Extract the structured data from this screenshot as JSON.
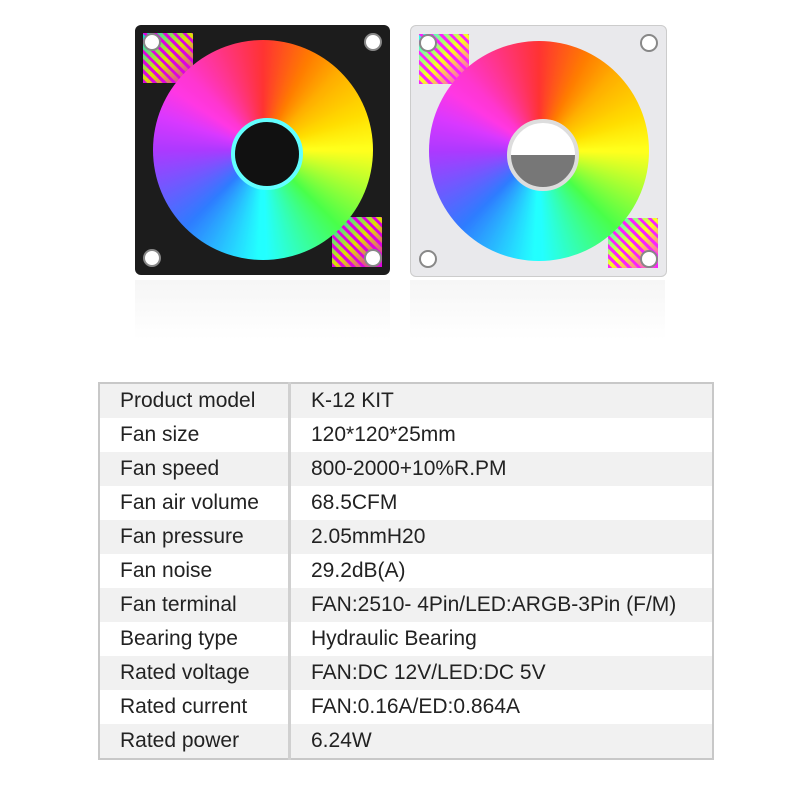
{
  "products": [
    {
      "name": "black-fan",
      "color": "#1c1c1c"
    },
    {
      "name": "white-fan",
      "color": "#e9e9ec"
    }
  ],
  "specs": [
    {
      "label": "Product model",
      "value": "K-12 KIT"
    },
    {
      "label": "Fan size",
      "value": "120*120*25mm"
    },
    {
      "label": "Fan speed",
      "value": "800-2000+10%R.PM"
    },
    {
      "label": "Fan air volume",
      "value": "68.5CFM"
    },
    {
      "label": "Fan pressure",
      "value": "2.05mmH20"
    },
    {
      "label": "Fan noise",
      "value": "29.2dB(A)"
    },
    {
      "label": "Fan terminal",
      "value": "FAN:2510- 4Pin/LED:ARGB-3Pin (F/M)"
    },
    {
      "label": "Bearing type",
      "value": "Hydraulic Bearing"
    },
    {
      "label": "Rated voltage",
      "value": "FAN:DC 12V/LED:DC 5V"
    },
    {
      "label": "Rated current",
      "value": "FAN:0.16A/ED:0.864A"
    },
    {
      "label": "Rated power",
      "value": "6.24W"
    }
  ]
}
